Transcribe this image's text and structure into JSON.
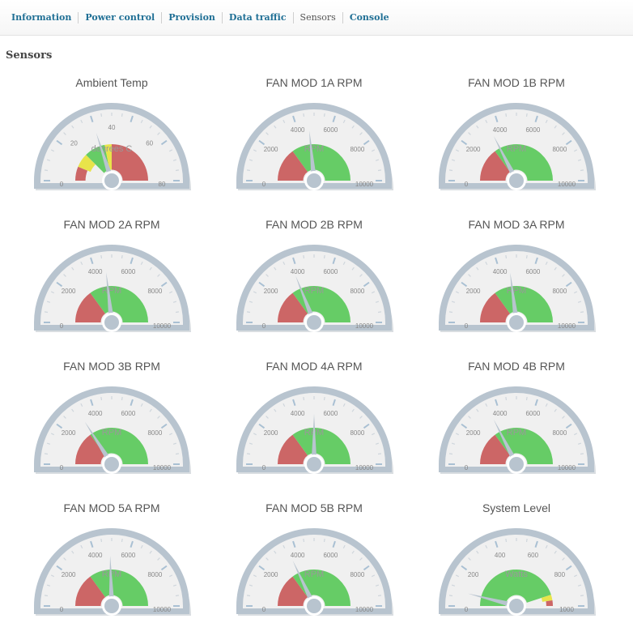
{
  "tabs": [
    {
      "label": "Information",
      "active": false
    },
    {
      "label": "Power control",
      "active": false
    },
    {
      "label": "Provision",
      "active": false
    },
    {
      "label": "Data traffic",
      "active": false
    },
    {
      "label": "Sensors",
      "active": true
    },
    {
      "label": "Console",
      "active": false
    }
  ],
  "page_title": "Sensors",
  "colors": {
    "green": "#66cc66",
    "red": "#cc6666",
    "yellow": "#e8e44a",
    "rim": "#b8c4cf",
    "face": "#f0f0f0",
    "needle": "#b8c4cf",
    "tab_link": "#1f6f95"
  },
  "gauges": [
    {
      "title": "Ambient Temp",
      "units": "degrees C",
      "min": 0,
      "max": 80,
      "ticks": [
        "0",
        "20",
        "40",
        "60",
        "80"
      ],
      "value": 32,
      "bands": [
        {
          "from": 0,
          "to": 10,
          "color": "red",
          "inner": 0.72
        },
        {
          "from": 10,
          "to": 20,
          "color": "yellow",
          "inner": 0.63
        },
        {
          "from": 20,
          "to": 35,
          "color": "green",
          "inner": 0.3
        },
        {
          "from": 35,
          "to": 40,
          "color": "yellow",
          "inner": 0.3
        },
        {
          "from": 40,
          "to": 80,
          "color": "red",
          "inner": 0.3
        }
      ]
    },
    {
      "title": "FAN MOD 1A RPM",
      "units": "RPM",
      "min": 0,
      "max": 10000,
      "ticks": [
        "0",
        "2000",
        "4000",
        "6000",
        "8000",
        "10000"
      ],
      "value": 4700,
      "bands": [
        {
          "from": 0,
          "to": 3000,
          "color": "red",
          "inner": 0.3
        },
        {
          "from": 3000,
          "to": 10000,
          "color": "green",
          "inner": 0.3
        }
      ]
    },
    {
      "title": "FAN MOD 1B RPM",
      "units": "RPM",
      "min": 0,
      "max": 10000,
      "ticks": [
        "0",
        "2000",
        "4000",
        "6000",
        "8000",
        "10000"
      ],
      "value": 3500,
      "bands": [
        {
          "from": 0,
          "to": 3000,
          "color": "red",
          "inner": 0.3
        },
        {
          "from": 3000,
          "to": 10000,
          "color": "green",
          "inner": 0.3
        }
      ]
    },
    {
      "title": "FAN MOD 2A RPM",
      "units": "RPM",
      "min": 0,
      "max": 10000,
      "ticks": [
        "0",
        "2000",
        "4000",
        "6000",
        "8000",
        "10000"
      ],
      "value": 4650,
      "bands": [
        {
          "from": 0,
          "to": 3000,
          "color": "red",
          "inner": 0.3
        },
        {
          "from": 3000,
          "to": 10000,
          "color": "green",
          "inner": 0.3
        }
      ]
    },
    {
      "title": "FAN MOD 2B RPM",
      "units": "RPM",
      "min": 0,
      "max": 10000,
      "ticks": [
        "0",
        "2000",
        "4000",
        "6000",
        "8000",
        "10000"
      ],
      "value": 3800,
      "bands": [
        {
          "from": 0,
          "to": 3000,
          "color": "red",
          "inner": 0.3
        },
        {
          "from": 3000,
          "to": 10000,
          "color": "green",
          "inner": 0.3
        }
      ]
    },
    {
      "title": "FAN MOD 3A RPM",
      "units": "RPM",
      "min": 0,
      "max": 10000,
      "ticks": [
        "0",
        "2000",
        "4000",
        "6000",
        "8000",
        "10000"
      ],
      "value": 4600,
      "bands": [
        {
          "from": 0,
          "to": 3000,
          "color": "red",
          "inner": 0.3
        },
        {
          "from": 3000,
          "to": 10000,
          "color": "green",
          "inner": 0.3
        }
      ]
    },
    {
      "title": "FAN MOD 3B RPM",
      "units": "RPM",
      "min": 0,
      "max": 10000,
      "ticks": [
        "0",
        "2000",
        "4000",
        "6000",
        "8000",
        "10000"
      ],
      "value": 3200,
      "bands": [
        {
          "from": 0,
          "to": 3000,
          "color": "red",
          "inner": 0.3
        },
        {
          "from": 3000,
          "to": 10000,
          "color": "green",
          "inner": 0.3
        }
      ]
    },
    {
      "title": "FAN MOD 4A RPM",
      "units": "RPM",
      "min": 0,
      "max": 10000,
      "ticks": [
        "0",
        "2000",
        "4000",
        "6000",
        "8000",
        "10000"
      ],
      "value": 5000,
      "bands": [
        {
          "from": 0,
          "to": 3000,
          "color": "red",
          "inner": 0.3
        },
        {
          "from": 3000,
          "to": 10000,
          "color": "green",
          "inner": 0.3
        }
      ]
    },
    {
      "title": "FAN MOD 4B RPM",
      "units": "RPM",
      "min": 0,
      "max": 10000,
      "ticks": [
        "0",
        "2000",
        "4000",
        "6000",
        "8000",
        "10000"
      ],
      "value": 3500,
      "bands": [
        {
          "from": 0,
          "to": 3000,
          "color": "red",
          "inner": 0.3
        },
        {
          "from": 3000,
          "to": 10000,
          "color": "green",
          "inner": 0.3
        }
      ]
    },
    {
      "title": "FAN MOD 5A RPM",
      "units": "RPM",
      "min": 0,
      "max": 10000,
      "ticks": [
        "0",
        "2000",
        "4000",
        "6000",
        "8000",
        "10000"
      ],
      "value": 4900,
      "bands": [
        {
          "from": 0,
          "to": 3000,
          "color": "red",
          "inner": 0.3
        },
        {
          "from": 3000,
          "to": 10000,
          "color": "green",
          "inner": 0.3
        }
      ]
    },
    {
      "title": "FAN MOD 5B RPM",
      "units": "RPM",
      "min": 0,
      "max": 10000,
      "ticks": [
        "0",
        "2000",
        "4000",
        "6000",
        "8000",
        "10000"
      ],
      "value": 3600,
      "bands": [
        {
          "from": 0,
          "to": 3000,
          "color": "red",
          "inner": 0.3
        },
        {
          "from": 3000,
          "to": 10000,
          "color": "green",
          "inner": 0.3
        }
      ]
    },
    {
      "title": "System Level",
      "units": "Watts",
      "min": 0,
      "max": 1000,
      "ticks": [
        "0",
        "200",
        "400",
        "600",
        "800",
        "1000"
      ],
      "value": 80,
      "bands": [
        {
          "from": 0,
          "to": 900,
          "color": "green",
          "inner": 0.3
        },
        {
          "from": 900,
          "to": 950,
          "color": "yellow",
          "inner": 0.72
        },
        {
          "from": 950,
          "to": 1000,
          "color": "red",
          "inner": 0.82
        }
      ]
    }
  ]
}
